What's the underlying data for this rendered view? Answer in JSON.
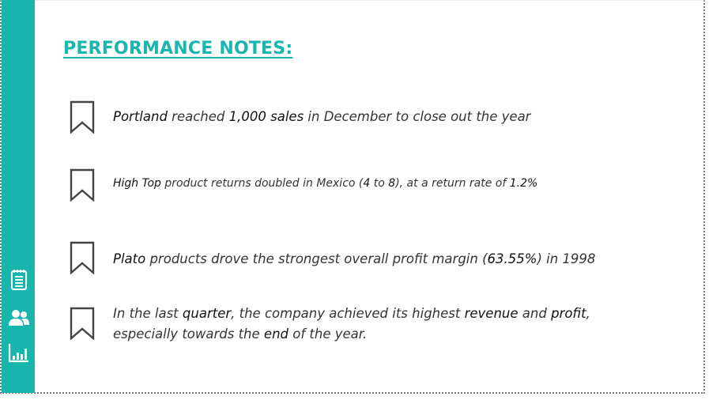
{
  "title": "PERFORMANCE NOTES:",
  "sidebar": {
    "icons": [
      "notepad-icon",
      "people-icon",
      "bar-chart-icon"
    ]
  },
  "notes": [
    {
      "parts": [
        "Portland",
        " reached ",
        "1,000 sales",
        " in December to close out the year"
      ]
    },
    {
      "parts": [
        "High Top",
        " product returns doubled in Mexico (",
        "4",
        " to ",
        "8",
        "), at a return rate of ",
        "1.2%"
      ]
    },
    {
      "parts": [
        "Plato",
        " products drove the strongest overall profit margin (",
        "63.55%",
        ") in 1998"
      ]
    },
    {
      "line1": [
        "In the last ",
        "quarter",
        ", the company achieved its highest ",
        "revenue",
        " and ",
        "profit",
        ","
      ],
      "line2": [
        "especially towards the ",
        "end",
        " of the year."
      ]
    }
  ],
  "colors": {
    "accent": "#18b5ad",
    "title": "#1ab6ad",
    "text": "#333333"
  }
}
